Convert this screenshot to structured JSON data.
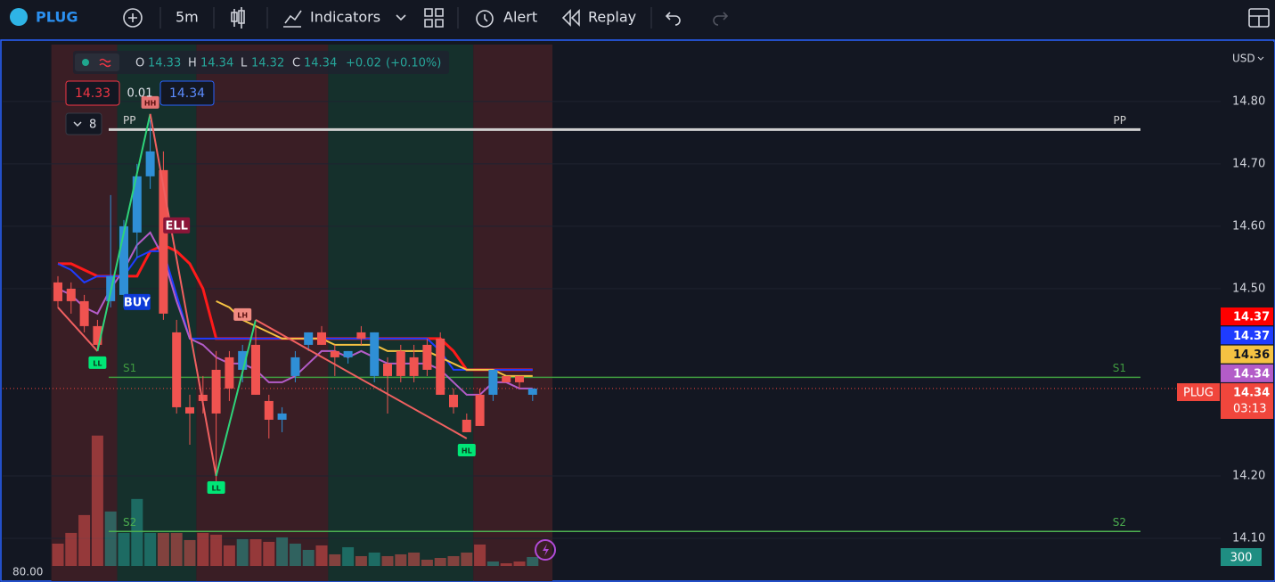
{
  "toolbar": {
    "symbol": "PLUG",
    "interval": "5m",
    "indicators": "Indicators",
    "alert": "Alert",
    "replay": "Replay"
  },
  "legend": {
    "open_label": "O",
    "open": 14.33,
    "high_label": "H",
    "high": 14.34,
    "low_label": "L",
    "low": 14.32,
    "close_label": "C",
    "close": 14.34,
    "change": "+0.02",
    "change_pct": "(+0.10%)",
    "bid": 14.33,
    "spread": 0.01,
    "ask": 14.34,
    "collapse_count": 8
  },
  "chart_data": {
    "type": "candlestick",
    "currency": "USD",
    "ylim": [
      14.03,
      14.894
    ],
    "yticks": [
      {
        "value": 14.8,
        "label": "14.80"
      },
      {
        "value": 14.7,
        "label": "14.70"
      },
      {
        "value": 14.6,
        "label": "14.60"
      },
      {
        "value": 14.5,
        "label": "14.50"
      },
      {
        "value": 14.2,
        "label": "14.20"
      },
      {
        "value": 14.1,
        "label": "14.10"
      }
    ],
    "grid": true,
    "up_color": "#2f8fd6",
    "down_color": "#f05350",
    "open": [
      14.51,
      14.5,
      14.48,
      14.44,
      14.48,
      14.49,
      14.59,
      14.68,
      14.69,
      14.43,
      14.31,
      14.33,
      14.37,
      14.39,
      14.37,
      14.41,
      14.32,
      14.29,
      14.36,
      14.41,
      14.43,
      14.4,
      14.39,
      14.43,
      14.36,
      14.38,
      14.4,
      14.39,
      14.41,
      14.42,
      14.33,
      14.29,
      14.33,
      14.33,
      14.36,
      14.36,
      14.33
    ],
    "high": [
      14.52,
      14.51,
      14.49,
      14.45,
      14.65,
      14.61,
      14.7,
      14.77,
      14.72,
      14.45,
      14.33,
      14.36,
      14.4,
      14.4,
      14.41,
      14.44,
      14.33,
      14.31,
      14.4,
      14.43,
      14.44,
      14.41,
      14.4,
      14.44,
      14.43,
      14.39,
      14.41,
      14.41,
      14.42,
      14.43,
      14.34,
      14.3,
      14.34,
      14.37,
      14.36,
      14.36,
      14.34
    ],
    "low": [
      14.47,
      14.46,
      14.43,
      14.4,
      14.47,
      14.47,
      14.55,
      14.66,
      14.45,
      14.3,
      14.25,
      14.3,
      14.19,
      14.32,
      14.35,
      14.33,
      14.26,
      14.27,
      14.35,
      14.4,
      14.41,
      14.36,
      14.38,
      14.41,
      14.35,
      14.3,
      14.35,
      14.35,
      14.36,
      14.33,
      14.3,
      14.27,
      14.28,
      14.32,
      14.35,
      14.34,
      14.32
    ],
    "close": [
      14.48,
      14.48,
      14.44,
      14.41,
      14.52,
      14.6,
      14.68,
      14.72,
      14.46,
      14.31,
      14.3,
      14.32,
      14.3,
      14.34,
      14.4,
      14.33,
      14.29,
      14.3,
      14.39,
      14.43,
      14.41,
      14.39,
      14.4,
      14.42,
      14.43,
      14.36,
      14.36,
      14.36,
      14.37,
      14.33,
      14.31,
      14.27,
      14.28,
      14.37,
      14.35,
      14.35,
      14.34
    ],
    "series": [
      {
        "name": "upper",
        "color": "#ff1a1a",
        "values": [
          14.54,
          14.54,
          14.53,
          14.52,
          14.52,
          14.52,
          14.52,
          14.56,
          14.57,
          14.56,
          14.54,
          14.5,
          14.42,
          14.42,
          14.42,
          14.42,
          14.42,
          14.42,
          14.42,
          14.42,
          14.42,
          14.42,
          14.42,
          14.42,
          14.42,
          14.42,
          14.42,
          14.42,
          14.42,
          14.42,
          14.4,
          14.37,
          14.37,
          14.37,
          14.37,
          14.37,
          14.37
        ]
      },
      {
        "name": "lower",
        "color": "#1e3cff",
        "values": [
          14.54,
          14.53,
          14.51,
          14.52,
          14.52,
          14.52,
          14.55,
          14.56,
          14.56,
          14.49,
          14.42,
          14.42,
          14.42,
          14.42,
          14.42,
          14.42,
          14.42,
          14.42,
          14.42,
          14.42,
          14.42,
          14.42,
          14.42,
          14.42,
          14.42,
          14.42,
          14.42,
          14.42,
          14.42,
          14.4,
          14.37,
          14.37,
          14.37,
          14.37,
          14.37,
          14.37,
          14.37
        ]
      },
      {
        "name": "ema",
        "color": "#f5c242",
        "values": [
          null,
          null,
          null,
          null,
          null,
          null,
          null,
          null,
          null,
          null,
          null,
          null,
          14.48,
          14.47,
          14.45,
          14.44,
          14.43,
          14.42,
          14.42,
          14.42,
          14.42,
          14.41,
          14.41,
          14.41,
          14.41,
          14.4,
          14.4,
          14.4,
          14.4,
          14.39,
          14.38,
          14.37,
          14.37,
          14.37,
          14.36,
          14.36,
          14.36
        ]
      },
      {
        "name": "vwap",
        "color": "#b35cc8",
        "values": [
          14.5,
          14.49,
          14.47,
          14.46,
          14.5,
          14.53,
          14.57,
          14.59,
          14.55,
          14.48,
          14.42,
          14.41,
          14.39,
          14.38,
          14.38,
          14.37,
          14.35,
          14.35,
          14.36,
          14.38,
          14.4,
          14.4,
          14.39,
          14.4,
          14.39,
          14.38,
          14.38,
          14.38,
          14.38,
          14.37,
          14.35,
          14.33,
          14.33,
          14.35,
          14.35,
          14.34,
          14.34
        ]
      }
    ],
    "volume": [
      750,
      1110,
      1710,
      4380,
      1830,
      1110,
      2250,
      1110,
      1110,
      1110,
      870,
      1110,
      1050,
      690,
      900,
      900,
      810,
      960,
      750,
      540,
      690,
      390,
      630,
      330,
      450,
      330,
      390,
      450,
      210,
      270,
      330,
      450,
      720,
      150,
      90,
      150,
      300
    ],
    "vlim": [
      0,
      5000
    ],
    "volume_axis_label": "80.00",
    "zones": [
      {
        "from": 0,
        "to": 4,
        "color": "#3a1e25"
      },
      {
        "from": 5,
        "to": 10,
        "color": "#15302c"
      },
      {
        "from": 11,
        "to": 20,
        "color": "#3a1e25"
      },
      {
        "from": 21,
        "to": 31,
        "color": "#15302c"
      },
      {
        "from": 32,
        "to": 37,
        "color": "#3a1e25"
      }
    ],
    "levels": [
      {
        "name": "PP",
        "value": 14.755,
        "color": "#d0d0d0"
      },
      {
        "name": "S1",
        "value": 14.358,
        "color": "#3f9a3f"
      },
      {
        "name": "S2",
        "value": 14.111,
        "color": "#4caf50"
      }
    ],
    "zigzag": {
      "x": [
        0,
        3,
        7,
        12,
        15,
        31
      ],
      "values": [
        14.47,
        14.4,
        14.78,
        14.2,
        14.45,
        14.26
      ]
    },
    "markers": [
      {
        "label": "LL",
        "index": 3,
        "value": 14.4,
        "color": "#00e676",
        "text_color": "#0b3b1f",
        "side": "below"
      },
      {
        "label": "HH",
        "index": 7,
        "value": 14.78,
        "color": "#e57373",
        "text_color": "#5a1010",
        "side": "above"
      },
      {
        "label": "LL",
        "index": 12,
        "value": 14.2,
        "color": "#00e676",
        "text_color": "#0b3b1f",
        "side": "below"
      },
      {
        "label": "LH",
        "index": 14,
        "value": 14.44,
        "color": "#f28b82",
        "text_color": "#5a1010",
        "side": "above"
      },
      {
        "label": "HL",
        "index": 31,
        "value": 14.26,
        "color": "#00e676",
        "text_color": "#0b3b1f",
        "side": "below"
      },
      {
        "label": "BUY",
        "index": 6,
        "value": 14.5,
        "color": "#0d3bd8",
        "text_color": "#ffffff",
        "side": "below"
      },
      {
        "label": "ELL",
        "index": 9,
        "value": 14.58,
        "color": "#8a1538",
        "text_color": "#ffffff",
        "side": "above"
      }
    ],
    "price_tags": [
      {
        "value": 14.37,
        "color": "#ff0000"
      },
      {
        "value": 14.37,
        "color": "#1e3cff"
      },
      {
        "value": 14.36,
        "color": "#f5c242"
      },
      {
        "value": 14.34,
        "color": "#b35cc8"
      }
    ],
    "last": {
      "symbol": "PLUG",
      "value": 14.34,
      "countdown": "03:13",
      "color": "#f0463c"
    },
    "volume_tag": {
      "value": 300,
      "color": "#1f8e82"
    }
  }
}
